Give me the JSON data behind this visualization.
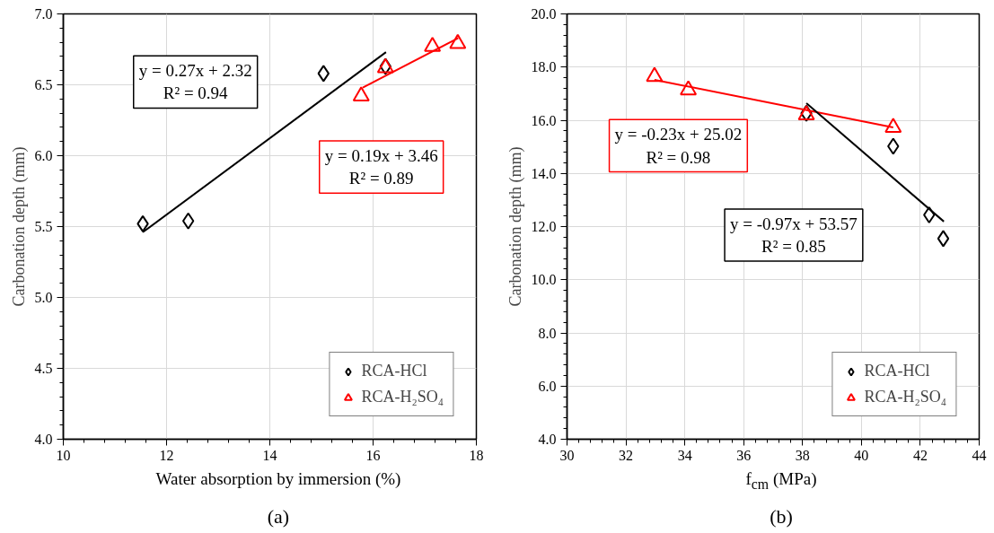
{
  "chart_data": [
    {
      "type": "scatter",
      "xlabel": "Water absorption by immersion (%)",
      "ylabel": "Carbonation depth (mm)",
      "xlim": [
        10,
        18
      ],
      "xticks": [
        10,
        12,
        14,
        16,
        18
      ],
      "ylim": [
        4,
        7
      ],
      "yticks": [
        {
          "value": 4,
          "label": "4.0"
        },
        {
          "value": 4.5,
          "label": "4.5"
        },
        {
          "value": 5,
          "label": "5.0"
        },
        {
          "value": 5.5,
          "label": "5.5"
        },
        {
          "value": 6,
          "label": "6.0"
        },
        {
          "value": 6.5,
          "label": "6.5"
        },
        {
          "value": 7,
          "label": "7.0"
        }
      ],
      "grid": true,
      "legend": "bottom right",
      "series": [
        {
          "name": "RCA-HCl",
          "marker": "diamond",
          "color": "#000000",
          "x": [
            11.54,
            12.42,
            15.04,
            16.24
          ],
          "values": [
            5.52,
            5.54,
            6.58,
            6.63
          ]
        },
        {
          "name": "RCA-H₂SO₄",
          "marker": "triangle",
          "color": "#ff0000",
          "x": [
            15.77,
            16.24,
            17.15,
            17.64
          ],
          "values": [
            6.42,
            6.62,
            6.77,
            6.79
          ]
        },
        {
          "type": "line",
          "color": "#000000",
          "x": [
            11.54,
            16.25
          ],
          "values": [
            5.46,
            6.73
          ]
        },
        {
          "type": "line",
          "color": "#ff0000",
          "x": [
            15.8,
            17.65
          ],
          "values": [
            6.48,
            6.83
          ]
        }
      ],
      "annotations": [
        "y = 0.27x + 2.32\nR² = 0.94",
        "y = 0.19x + 3.46\nR² = 0.89",
        "(a)"
      ]
    },
    {
      "type": "scatter",
      "xlabel": "f$_{cm}$ (MPa)",
      "ylabel": "Carbonation depth (mm)",
      "xlim": [
        30,
        44
      ],
      "xticks": [
        30,
        32,
        34,
        36,
        38,
        40,
        42,
        44
      ],
      "ylim": [
        4,
        20
      ],
      "yticks": [
        {
          "value": 4,
          "label": "4.0"
        },
        {
          "value": 6,
          "label": "6.0"
        },
        {
          "value": 8,
          "label": "8.0"
        },
        {
          "value": 10,
          "label": "10.0"
        },
        {
          "value": 12,
          "label": "12.0"
        },
        {
          "value": 14,
          "label": "14.0"
        },
        {
          "value": 16,
          "label": "16.0"
        },
        {
          "value": 18,
          "label": "18.0"
        },
        {
          "value": 20,
          "label": "20.0"
        }
      ],
      "grid": true,
      "legend": "bottom right",
      "series": [
        {
          "name": "RCA-HCl",
          "marker": "diamond",
          "color": "#000000",
          "x": [
            38.13,
            41.08,
            42.3,
            42.78
          ],
          "values": [
            16.26,
            15.02,
            12.44,
            11.55
          ]
        },
        {
          "name": "RCA-H₂SO₄",
          "marker": "triangle",
          "color": "#ff0000",
          "x": [
            32.97,
            34.12,
            38.13,
            41.08
          ],
          "values": [
            17.64,
            17.14,
            16.2,
            15.73
          ]
        },
        {
          "type": "line",
          "color": "#ff0000",
          "x": [
            32.97,
            41.08
          ],
          "values": [
            17.52,
            15.73
          ]
        },
        {
          "type": "line",
          "color": "#000000",
          "x": [
            38.13,
            42.8
          ],
          "values": [
            16.64,
            12.19
          ]
        }
      ],
      "annotations": [
        "y = -0.23x + 25.02\nR² = 0.98",
        "y = -0.97x + 53.57\nR² = 0.85",
        "(b)"
      ]
    }
  ]
}
